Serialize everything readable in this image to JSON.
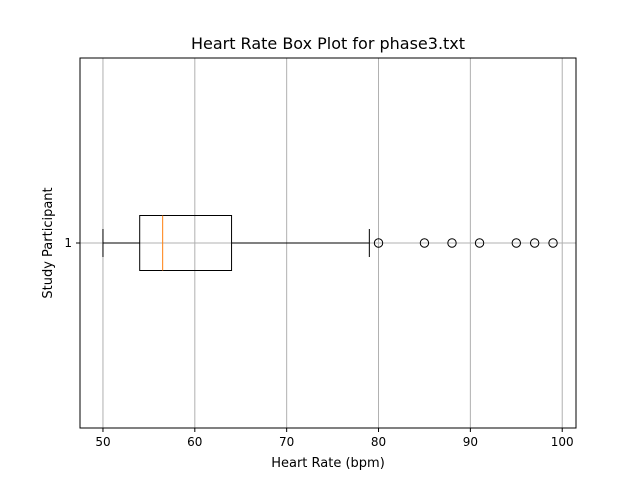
{
  "chart_data": {
    "type": "box",
    "title": "Heart Rate Box Plot for phase3.txt",
    "xlabel": "Heart Rate (bpm)",
    "ylabel": "Study Participant",
    "orientation": "horizontal",
    "xlim": [
      47.5,
      101.5
    ],
    "xticks": [
      50,
      60,
      70,
      80,
      90,
      100
    ],
    "grid": true,
    "boxes": [
      {
        "category": "1",
        "whisker_low": 50,
        "q1": 54,
        "median": 56.5,
        "q3": 64,
        "whisker_high": 79,
        "outliers": [
          80,
          85,
          88,
          91,
          95,
          97,
          99
        ]
      }
    ],
    "colors": {
      "box": "#000000",
      "median": "#ff7f0e",
      "grid": "#b0b0b0"
    }
  }
}
